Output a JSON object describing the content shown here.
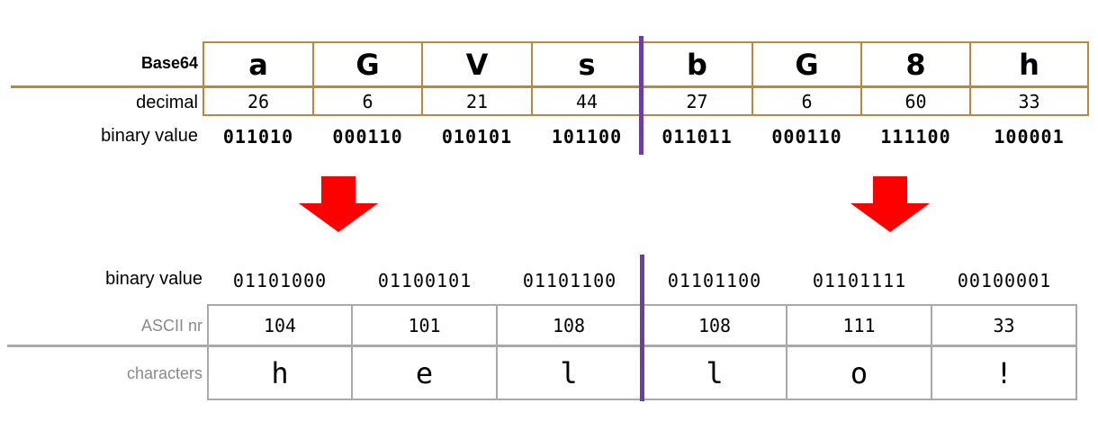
{
  "top": {
    "labels": {
      "base64": "Base64",
      "decimal": "decimal",
      "binary": "binary value"
    },
    "base64_chars": [
      "a",
      "G",
      "V",
      "s",
      "b",
      "G",
      "8",
      "h"
    ],
    "decimals": [
      "26",
      "6",
      "21",
      "44",
      "27",
      "6",
      "60",
      "33"
    ],
    "binaries": [
      "011010",
      "000110",
      "010101",
      "101100",
      "011011",
      "000110",
      "111100",
      "100001"
    ]
  },
  "bottom": {
    "labels": {
      "binary": "binary value",
      "ascii": "ASCII nr",
      "characters": "characters"
    },
    "binaries": [
      "01101000",
      "01100101",
      "01101100",
      "01101100",
      "01101111",
      "00100001"
    ],
    "ascii": [
      "104",
      "101",
      "108",
      "108",
      "111",
      "33"
    ],
    "characters": [
      "h",
      "e",
      "l",
      "l",
      "o",
      "!"
    ]
  },
  "colors": {
    "gold": "#b58a3a",
    "gray": "#a9a9a9",
    "purple": "#6a3fa0",
    "arrow": "#ff0000"
  },
  "icons": {
    "arrow": "down-arrow-icon"
  }
}
